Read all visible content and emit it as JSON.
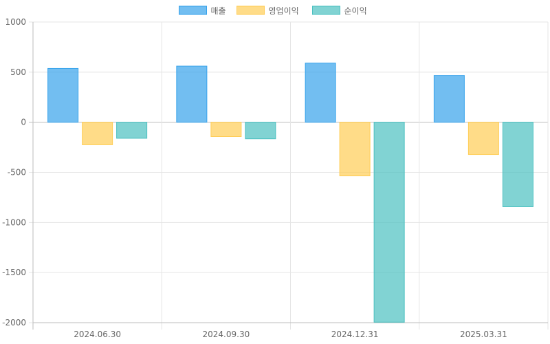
{
  "chart_data": {
    "type": "bar",
    "categories": [
      "2024.06.30",
      "2024.09.30",
      "2024.12.31",
      "2025.03.31"
    ],
    "series": [
      {
        "name": "매출",
        "values": [
          537,
          560,
          590,
          467
        ],
        "color": "#36a2eb"
      },
      {
        "name": "영업이익",
        "values": [
          -225,
          -143,
          -535,
          -322
        ],
        "color": "#ffcd56"
      },
      {
        "name": "순이익",
        "values": [
          -160,
          -165,
          -1995,
          -843
        ],
        "color": "#4bc0c0"
      }
    ],
    "ylim": [
      -2000,
      1000
    ],
    "yticks": [
      1000,
      500,
      0,
      -500,
      -1000,
      -1500,
      -2000
    ],
    "ytick_labels": [
      "1000",
      "500",
      "0",
      "-500",
      "-1000",
      "-1500",
      "-2000"
    ],
    "grid": true,
    "legend": "top-center"
  }
}
